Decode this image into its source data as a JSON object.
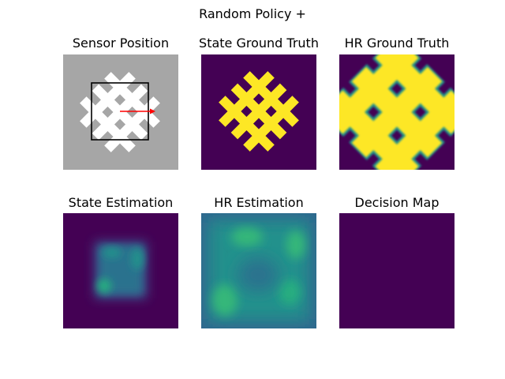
{
  "figure": {
    "suptitle": "Random Policy +"
  },
  "panels": {
    "sensor_position": {
      "title": "Sensor Position"
    },
    "state_ground_truth": {
      "title": "State Ground Truth"
    },
    "hr_ground_truth": {
      "title": "HR Ground Truth"
    },
    "state_estimation": {
      "title": "State Estimation"
    },
    "hr_estimation": {
      "title": "HR Estimation"
    },
    "decision_map": {
      "title": "Decision Map"
    }
  },
  "colors": {
    "viridis_dark": "#440154",
    "viridis_yellow": "#fde725",
    "viridis_green": "#35b779",
    "viridis_teal": "#21918c",
    "viridis_blue": "#31688e",
    "sensor_background": "#a6a6a6",
    "sensor_pattern": "#ffffff",
    "sensor_arrow": "#ff0000",
    "sensor_box": "#000000"
  }
}
